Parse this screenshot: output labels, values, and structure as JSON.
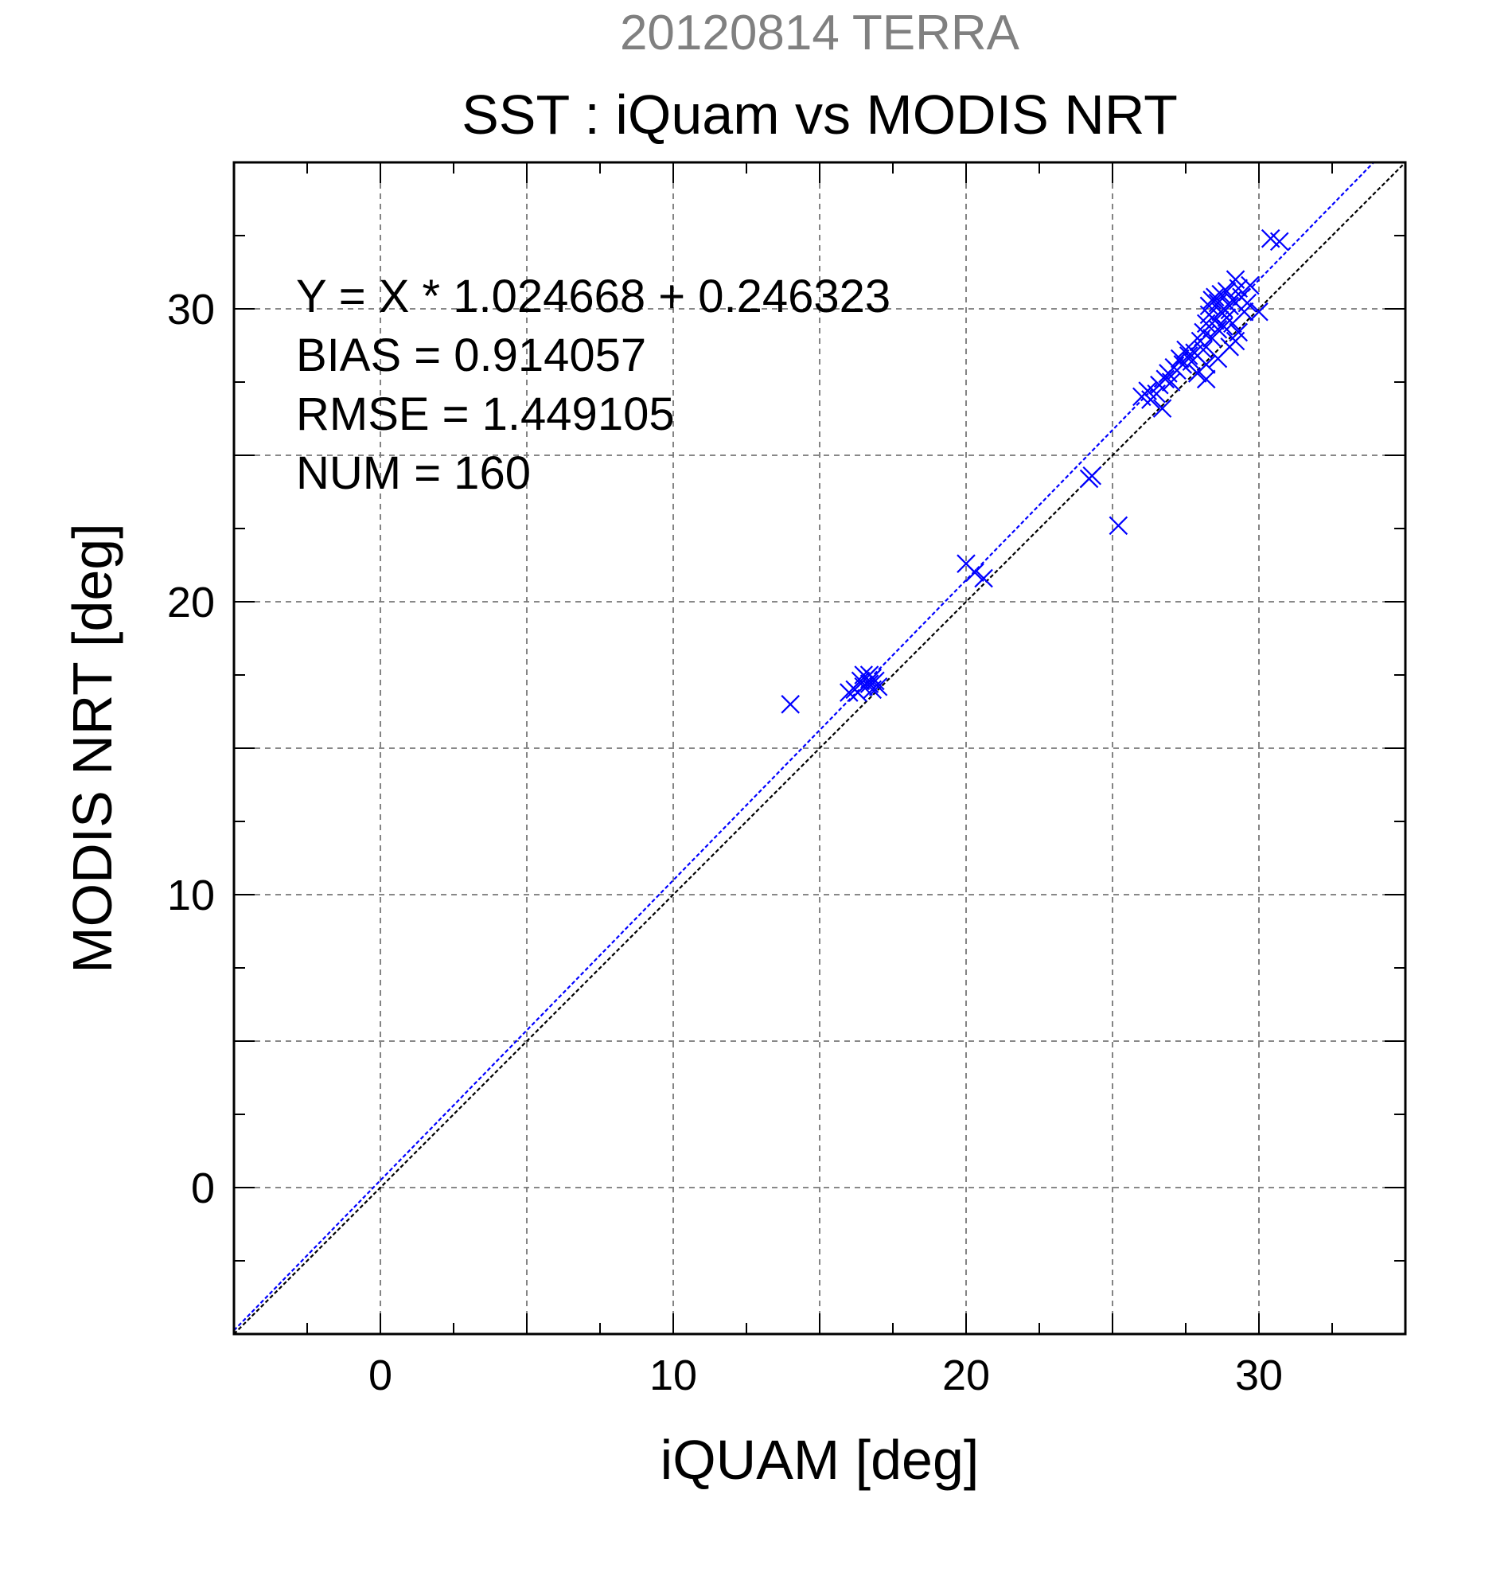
{
  "chart_data": {
    "type": "scatter",
    "title": "SST : iQuam vs MODIS NRT",
    "subtitle": "20120814 TERRA",
    "xlabel": "iQUAM [deg]",
    "ylabel": "MODIS NRT [deg]",
    "xlim": [
      -5,
      35
    ],
    "ylim": [
      -5,
      35
    ],
    "xticks": [
      0,
      10,
      20,
      30
    ],
    "yticks": [
      0,
      10,
      20,
      30
    ],
    "grid": true,
    "annotations": [
      "Y = X * 1.024668 + 0.246323",
      "BIAS = 0.914057",
      "RMSE = 1.449105",
      "NUM = 160"
    ],
    "fit_line": {
      "slope": 1.024668,
      "intercept": 0.246323,
      "color": "#0000ff"
    },
    "identity_line": {
      "slope": 1,
      "intercept": 0,
      "color": "#000000"
    },
    "series": [
      {
        "color": "#0000ff",
        "marker": "x",
        "points": [
          [
            14.0,
            16.5
          ],
          [
            16.0,
            16.9
          ],
          [
            16.2,
            17.0
          ],
          [
            16.4,
            17.3
          ],
          [
            16.5,
            17.1
          ],
          [
            16.6,
            17.4
          ],
          [
            16.7,
            17.2
          ],
          [
            16.8,
            17.0
          ],
          [
            16.9,
            17.3
          ],
          [
            17.0,
            17.1
          ],
          [
            16.5,
            17.5
          ],
          [
            16.7,
            17.5
          ],
          [
            16.3,
            16.9
          ],
          [
            16.8,
            17.4
          ],
          [
            20.0,
            21.3
          ],
          [
            20.3,
            21.0
          ],
          [
            20.6,
            20.8
          ],
          [
            24.2,
            24.2
          ],
          [
            24.3,
            24.3
          ],
          [
            25.2,
            22.6
          ],
          [
            26.0,
            27.0
          ],
          [
            26.2,
            27.2
          ],
          [
            26.3,
            26.9
          ],
          [
            26.5,
            27.1
          ],
          [
            26.6,
            27.4
          ],
          [
            26.7,
            26.6
          ],
          [
            26.8,
            27.6
          ],
          [
            26.9,
            27.8
          ],
          [
            27.0,
            27.5
          ],
          [
            27.1,
            28.0
          ],
          [
            27.2,
            27.9
          ],
          [
            27.3,
            28.3
          ],
          [
            27.4,
            28.1
          ],
          [
            27.5,
            28.6
          ],
          [
            27.6,
            28.4
          ],
          [
            27.7,
            28.2
          ],
          [
            27.8,
            28.5
          ],
          [
            27.9,
            27.8
          ],
          [
            28.0,
            28.9
          ],
          [
            28.1,
            29.2
          ],
          [
            28.1,
            28.6
          ],
          [
            28.2,
            29.5
          ],
          [
            28.2,
            28.1
          ],
          [
            28.3,
            29.8
          ],
          [
            28.3,
            30.1
          ],
          [
            28.4,
            30.3
          ],
          [
            28.4,
            29.0
          ],
          [
            28.5,
            30.4
          ],
          [
            28.5,
            29.6
          ],
          [
            28.6,
            30.2
          ],
          [
            28.6,
            29.3
          ],
          [
            28.7,
            30.5
          ],
          [
            28.7,
            29.9
          ],
          [
            28.8,
            30.0
          ],
          [
            28.8,
            29.4
          ],
          [
            28.9,
            30.6
          ],
          [
            28.9,
            29.7
          ],
          [
            29.0,
            30.1
          ],
          [
            29.0,
            28.7
          ],
          [
            29.1,
            30.3
          ],
          [
            29.1,
            29.5
          ],
          [
            29.2,
            31.0
          ],
          [
            29.2,
            28.9
          ],
          [
            29.3,
            30.7
          ],
          [
            29.3,
            29.2
          ],
          [
            29.4,
            30.4
          ],
          [
            29.5,
            29.9
          ],
          [
            29.6,
            30.2
          ],
          [
            29.7,
            30.8
          ],
          [
            30.0,
            29.9
          ],
          [
            30.4,
            32.4
          ],
          [
            30.7,
            32.3
          ],
          [
            28.6,
            28.3
          ],
          [
            28.2,
            27.6
          ]
        ]
      }
    ]
  }
}
